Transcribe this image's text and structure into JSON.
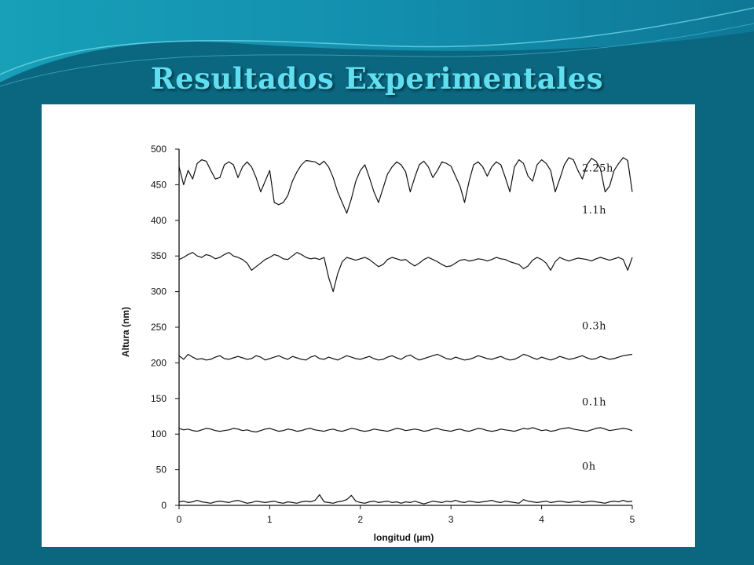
{
  "slide": {
    "title": "Resultados Experimentales"
  },
  "colors": {
    "background": "#0b6680",
    "title": "#5ee0f0",
    "plot_background": "#ffffff",
    "line": "#111111"
  },
  "chart_data": {
    "type": "line",
    "title": "",
    "xlabel": "longitud (μm)",
    "ylabel": "Altura (nm)",
    "xlim": [
      0,
      5
    ],
    "ylim": [
      0,
      500
    ],
    "x_ticks": [
      "0",
      "1",
      "2",
      "3",
      "4",
      "5"
    ],
    "y_ticks": [
      "0",
      "50",
      "100",
      "150",
      "200",
      "250",
      "300",
      "350",
      "400",
      "450",
      "500"
    ],
    "grid": false,
    "legend": "labels placed to the right of each trace",
    "x": [
      0,
      0.05,
      0.1,
      0.15,
      0.2,
      0.25,
      0.3,
      0.35,
      0.4,
      0.45,
      0.5,
      0.55,
      0.6,
      0.65,
      0.7,
      0.75,
      0.8,
      0.85,
      0.9,
      0.95,
      1.0,
      1.05,
      1.1,
      1.15,
      1.2,
      1.25,
      1.3,
      1.35,
      1.4,
      1.45,
      1.5,
      1.55,
      1.6,
      1.65,
      1.7,
      1.75,
      1.8,
      1.85,
      1.9,
      1.95,
      2.0,
      2.05,
      2.1,
      2.15,
      2.2,
      2.25,
      2.3,
      2.35,
      2.4,
      2.45,
      2.5,
      2.55,
      2.6,
      2.65,
      2.7,
      2.75,
      2.8,
      2.85,
      2.9,
      2.95,
      3.0,
      3.05,
      3.1,
      3.15,
      3.2,
      3.25,
      3.3,
      3.35,
      3.4,
      3.45,
      3.5,
      3.55,
      3.6,
      3.65,
      3.7,
      3.75,
      3.8,
      3.85,
      3.9,
      3.95,
      4.0,
      4.05,
      4.1,
      4.15,
      4.2,
      4.25,
      4.3,
      4.35,
      4.4,
      4.45,
      4.5,
      4.55,
      4.6,
      4.65,
      4.7,
      4.75,
      4.8,
      4.85,
      4.9,
      4.95,
      5.0
    ],
    "series": [
      {
        "name": "2.25h",
        "values": [
          475,
          450,
          470,
          458,
          480,
          485,
          483,
          470,
          458,
          460,
          478,
          482,
          478,
          460,
          475,
          482,
          475,
          460,
          440,
          455,
          470,
          425,
          422,
          425,
          435,
          455,
          468,
          478,
          484,
          483,
          482,
          478,
          483,
          475,
          460,
          440,
          425,
          410,
          430,
          455,
          470,
          478,
          460,
          440,
          425,
          445,
          465,
          475,
          482,
          478,
          468,
          440,
          460,
          478,
          483,
          475,
          460,
          470,
          482,
          480,
          476,
          462,
          448,
          425,
          455,
          478,
          482,
          475,
          462,
          475,
          482,
          478,
          460,
          440,
          475,
          485,
          480,
          462,
          455,
          478,
          485,
          480,
          470,
          440,
          458,
          478,
          488,
          485,
          470,
          458,
          478,
          487,
          483,
          472,
          440,
          448,
          470,
          480,
          488,
          484,
          440
        ]
      },
      {
        "name": "1.1h",
        "values": [
          345,
          348,
          352,
          355,
          350,
          348,
          352,
          350,
          346,
          348,
          352,
          355,
          350,
          348,
          345,
          340,
          330,
          335,
          340,
          345,
          348,
          352,
          350,
          346,
          345,
          350,
          355,
          352,
          348,
          346,
          347,
          345,
          348,
          320,
          300,
          325,
          342,
          348,
          346,
          344,
          346,
          348,
          345,
          340,
          335,
          338,
          345,
          348,
          346,
          344,
          345,
          340,
          336,
          340,
          345,
          348,
          345,
          342,
          338,
          335,
          336,
          340,
          344,
          345,
          343,
          344,
          346,
          345,
          343,
          345,
          348,
          346,
          345,
          342,
          340,
          338,
          332,
          336,
          344,
          348,
          345,
          340,
          330,
          342,
          348,
          345,
          343,
          345,
          347,
          346,
          345,
          343,
          346,
          348,
          346,
          344,
          346,
          348,
          345,
          330,
          348
        ]
      },
      {
        "name": "0.3h",
        "values": [
          210,
          205,
          212,
          208,
          205,
          206,
          204,
          205,
          208,
          210,
          206,
          205,
          207,
          209,
          207,
          205,
          206,
          210,
          208,
          204,
          206,
          208,
          210,
          207,
          205,
          209,
          207,
          205,
          204,
          208,
          210,
          206,
          205,
          208,
          206,
          204,
          207,
          210,
          208,
          206,
          205,
          207,
          209,
          206,
          204,
          205,
          208,
          210,
          207,
          205,
          209,
          211,
          207,
          204,
          206,
          208,
          210,
          212,
          209,
          206,
          205,
          208,
          206,
          204,
          205,
          207,
          210,
          208,
          206,
          205,
          207,
          209,
          206,
          204,
          205,
          208,
          212,
          210,
          207,
          205,
          208,
          206,
          204,
          206,
          209,
          207,
          205,
          206,
          208,
          210,
          207,
          205,
          206,
          209,
          207,
          205,
          206,
          208,
          210,
          211,
          212
        ]
      },
      {
        "name": "0.1h",
        "values": [
          108,
          106,
          107,
          105,
          104,
          106,
          108,
          107,
          105,
          104,
          105,
          106,
          108,
          107,
          105,
          106,
          104,
          103,
          105,
          107,
          108,
          106,
          104,
          105,
          107,
          106,
          104,
          105,
          107,
          108,
          106,
          105,
          104,
          106,
          107,
          105,
          104,
          106,
          108,
          107,
          105,
          104,
          105,
          107,
          106,
          105,
          104,
          106,
          108,
          107,
          105,
          106,
          107,
          106,
          104,
          105,
          107,
          108,
          106,
          105,
          104,
          106,
          107,
          105,
          104,
          106,
          108,
          107,
          105,
          104,
          105,
          107,
          106,
          105,
          104,
          106,
          108,
          107,
          109,
          107,
          105,
          106,
          104,
          105,
          107,
          108,
          109,
          107,
          106,
          105,
          104,
          106,
          108,
          109,
          107,
          105,
          106,
          107,
          108,
          107,
          105
        ]
      },
      {
        "name": "0h",
        "values": [
          5,
          6,
          4,
          5,
          7,
          5,
          4,
          3,
          5,
          6,
          5,
          4,
          6,
          7,
          5,
          3,
          4,
          6,
          5,
          4,
          5,
          6,
          4,
          3,
          5,
          4,
          3,
          5,
          6,
          5,
          7,
          15,
          5,
          4,
          3,
          5,
          6,
          8,
          14,
          6,
          4,
          3,
          5,
          6,
          4,
          5,
          6,
          4,
          5,
          3,
          5,
          4,
          6,
          4,
          2,
          4,
          6,
          5,
          4,
          6,
          5,
          7,
          5,
          4,
          6,
          5,
          4,
          5,
          6,
          7,
          5,
          4,
          6,
          5,
          4,
          3,
          8,
          6,
          5,
          4,
          5,
          6,
          4,
          5,
          6,
          5,
          4,
          5,
          6,
          4,
          5,
          6,
          5,
          4,
          3,
          5,
          6,
          5,
          7,
          5,
          6
        ]
      }
    ]
  }
}
